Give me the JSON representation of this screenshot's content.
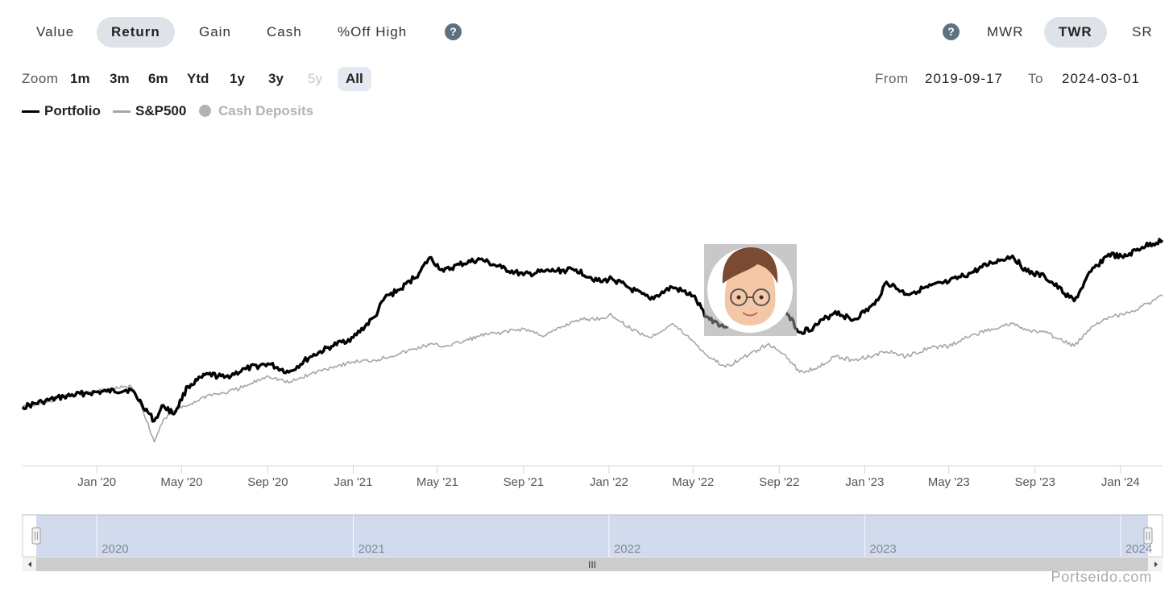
{
  "metric_tabs": [
    {
      "label": "Value",
      "active": false
    },
    {
      "label": "Return",
      "active": true
    },
    {
      "label": "Gain",
      "active": false
    },
    {
      "label": "Cash",
      "active": false
    },
    {
      "label": "%Off High",
      "active": false
    }
  ],
  "help_glyph": "?",
  "return_method_tabs": [
    {
      "label": "MWR",
      "active": false
    },
    {
      "label": "TWR",
      "active": true
    },
    {
      "label": "SR",
      "active": false
    }
  ],
  "zoom": {
    "label": "Zoom",
    "buttons": [
      {
        "label": "1m",
        "state": "normal"
      },
      {
        "label": "3m",
        "state": "normal"
      },
      {
        "label": "6m",
        "state": "normal"
      },
      {
        "label": "Ytd",
        "state": "normal"
      },
      {
        "label": "1y",
        "state": "normal"
      },
      {
        "label": "3y",
        "state": "normal"
      },
      {
        "label": "5y",
        "state": "disabled"
      },
      {
        "label": "All",
        "state": "active"
      }
    ]
  },
  "date_range": {
    "from_label": "From",
    "from_value": "2019-09-17",
    "to_label": "To",
    "to_value": "2024-03-01"
  },
  "legend": [
    {
      "label": "Portfolio",
      "color": "#000000",
      "marker": "line",
      "enabled": true
    },
    {
      "label": "S&P500",
      "color": "#a6a6a6",
      "marker": "line",
      "enabled": true
    },
    {
      "label": "Cash Deposits",
      "color": "#b3b3b3",
      "marker": "dot",
      "enabled": false
    }
  ],
  "chart_data": {
    "type": "line",
    "title": "",
    "xlabel": "",
    "ylabel": "",
    "x_range": [
      "2019-09-17",
      "2024-03-01"
    ],
    "x_tick_labels": [
      {
        "date": "2020-01-01",
        "label": "Jan '20"
      },
      {
        "date": "2020-05-01",
        "label": "May '20"
      },
      {
        "date": "2020-09-01",
        "label": "Sep '20"
      },
      {
        "date": "2021-01-01",
        "label": "Jan '21"
      },
      {
        "date": "2021-05-01",
        "label": "May '21"
      },
      {
        "date": "2021-09-01",
        "label": "Sep '21"
      },
      {
        "date": "2022-01-01",
        "label": "Jan '22"
      },
      {
        "date": "2022-05-01",
        "label": "May '22"
      },
      {
        "date": "2022-09-01",
        "label": "Sep '22"
      },
      {
        "date": "2023-01-01",
        "label": "Jan '23"
      },
      {
        "date": "2023-05-01",
        "label": "May '23"
      },
      {
        "date": "2023-09-01",
        "label": "Sep '23"
      },
      {
        "date": "2024-01-01",
        "label": "Jan '24"
      }
    ],
    "y_axis_labels": "none",
    "ylim": [
      -0.3,
      1.6
    ],
    "grid": false,
    "series": [
      {
        "name": "Portfolio",
        "color": "#000000",
        "points": [
          [
            "2019-09-17",
            0.0
          ],
          [
            "2019-10-15",
            0.03
          ],
          [
            "2019-11-15",
            0.06
          ],
          [
            "2019-12-15",
            0.08
          ],
          [
            "2020-01-15",
            0.09
          ],
          [
            "2020-02-19",
            0.1
          ],
          [
            "2020-03-05",
            0.02
          ],
          [
            "2020-03-23",
            -0.08
          ],
          [
            "2020-04-05",
            0.01
          ],
          [
            "2020-04-20",
            -0.04
          ],
          [
            "2020-05-10",
            0.12
          ],
          [
            "2020-06-08",
            0.19
          ],
          [
            "2020-07-01",
            0.17
          ],
          [
            "2020-08-01",
            0.22
          ],
          [
            "2020-09-01",
            0.25
          ],
          [
            "2020-10-01",
            0.2
          ],
          [
            "2020-11-01",
            0.29
          ],
          [
            "2020-12-01",
            0.35
          ],
          [
            "2021-01-01",
            0.4
          ],
          [
            "2021-02-01",
            0.52
          ],
          [
            "2021-02-15",
            0.63
          ],
          [
            "2021-03-10",
            0.68
          ],
          [
            "2021-04-05",
            0.77
          ],
          [
            "2021-04-20",
            0.86
          ],
          [
            "2021-05-10",
            0.78
          ],
          [
            "2021-06-01",
            0.82
          ],
          [
            "2021-07-01",
            0.85
          ],
          [
            "2021-08-01",
            0.8
          ],
          [
            "2021-09-01",
            0.76
          ],
          [
            "2021-10-01",
            0.78
          ],
          [
            "2021-11-15",
            0.79
          ],
          [
            "2021-12-20",
            0.72
          ],
          [
            "2022-01-05",
            0.74
          ],
          [
            "2022-02-01",
            0.68
          ],
          [
            "2022-03-01",
            0.62
          ],
          [
            "2022-04-01",
            0.69
          ],
          [
            "2022-05-01",
            0.64
          ],
          [
            "2022-05-20",
            0.52
          ],
          [
            "2022-06-16",
            0.46
          ],
          [
            "2022-07-10",
            0.53
          ],
          [
            "2022-08-15",
            0.61
          ],
          [
            "2022-09-10",
            0.55
          ],
          [
            "2022-09-30",
            0.43
          ],
          [
            "2022-10-20",
            0.46
          ],
          [
            "2022-11-20",
            0.55
          ],
          [
            "2022-12-15",
            0.5
          ],
          [
            "2023-01-15",
            0.59
          ],
          [
            "2023-02-01",
            0.72
          ],
          [
            "2023-03-01",
            0.65
          ],
          [
            "2023-04-01",
            0.69
          ],
          [
            "2023-05-01",
            0.72
          ],
          [
            "2023-06-01",
            0.77
          ],
          [
            "2023-07-01",
            0.83
          ],
          [
            "2023-07-31",
            0.87
          ],
          [
            "2023-08-20",
            0.78
          ],
          [
            "2023-09-15",
            0.75
          ],
          [
            "2023-10-27",
            0.61
          ],
          [
            "2023-11-20",
            0.78
          ],
          [
            "2023-12-15",
            0.88
          ],
          [
            "2024-01-05",
            0.86
          ],
          [
            "2024-02-01",
            0.92
          ],
          [
            "2024-03-01",
            0.96
          ]
        ]
      },
      {
        "name": "S&P500",
        "color": "#a6a6a6",
        "points": [
          [
            "2019-09-17",
            0.0
          ],
          [
            "2019-10-15",
            0.02
          ],
          [
            "2019-11-15",
            0.06
          ],
          [
            "2019-12-15",
            0.08
          ],
          [
            "2020-01-15",
            0.1
          ],
          [
            "2020-02-19",
            0.12
          ],
          [
            "2020-03-05",
            0.0
          ],
          [
            "2020-03-23",
            -0.2
          ],
          [
            "2020-04-05",
            -0.07
          ],
          [
            "2020-04-20",
            -0.02
          ],
          [
            "2020-05-10",
            0.01
          ],
          [
            "2020-06-08",
            0.07
          ],
          [
            "2020-07-01",
            0.08
          ],
          [
            "2020-08-01",
            0.12
          ],
          [
            "2020-09-01",
            0.18
          ],
          [
            "2020-10-01",
            0.14
          ],
          [
            "2020-11-01",
            0.19
          ],
          [
            "2020-12-01",
            0.23
          ],
          [
            "2021-01-01",
            0.26
          ],
          [
            "2021-02-01",
            0.27
          ],
          [
            "2021-03-10",
            0.31
          ],
          [
            "2021-04-20",
            0.36
          ],
          [
            "2021-05-10",
            0.35
          ],
          [
            "2021-06-01",
            0.37
          ],
          [
            "2021-07-01",
            0.41
          ],
          [
            "2021-08-01",
            0.43
          ],
          [
            "2021-09-01",
            0.45
          ],
          [
            "2021-10-01",
            0.41
          ],
          [
            "2021-11-15",
            0.5
          ],
          [
            "2021-12-20",
            0.51
          ],
          [
            "2022-01-05",
            0.53
          ],
          [
            "2022-02-01",
            0.45
          ],
          [
            "2022-03-01",
            0.4
          ],
          [
            "2022-04-01",
            0.48
          ],
          [
            "2022-05-01",
            0.38
          ],
          [
            "2022-05-20",
            0.3
          ],
          [
            "2022-06-16",
            0.23
          ],
          [
            "2022-07-10",
            0.28
          ],
          [
            "2022-08-15",
            0.36
          ],
          [
            "2022-09-10",
            0.3
          ],
          [
            "2022-09-30",
            0.2
          ],
          [
            "2022-10-20",
            0.22
          ],
          [
            "2022-11-20",
            0.29
          ],
          [
            "2022-12-15",
            0.27
          ],
          [
            "2023-01-15",
            0.3
          ],
          [
            "2023-02-01",
            0.32
          ],
          [
            "2023-03-01",
            0.29
          ],
          [
            "2023-04-01",
            0.34
          ],
          [
            "2023-05-01",
            0.35
          ],
          [
            "2023-06-01",
            0.41
          ],
          [
            "2023-07-01",
            0.45
          ],
          [
            "2023-07-31",
            0.48
          ],
          [
            "2023-08-20",
            0.44
          ],
          [
            "2023-09-15",
            0.43
          ],
          [
            "2023-10-27",
            0.35
          ],
          [
            "2023-11-20",
            0.46
          ],
          [
            "2023-12-15",
            0.52
          ],
          [
            "2024-01-05",
            0.53
          ],
          [
            "2024-02-01",
            0.58
          ],
          [
            "2024-03-01",
            0.64
          ]
        ]
      }
    ]
  },
  "navigator": {
    "year_labels": [
      "2020",
      "2021",
      "2022",
      "2023",
      "2024"
    ],
    "scroll_grip": "III"
  },
  "watermark": "Portseido.com"
}
